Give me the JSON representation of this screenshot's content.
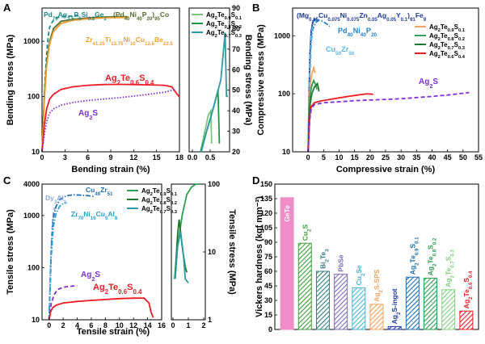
{
  "chart_data": [
    {
      "panel": "A",
      "type": "line",
      "xlabel": "Bending strain (%)",
      "ylabel": "Bending stress (MPa)",
      "yscale": "log",
      "xlim": [
        0,
        18
      ],
      "ylim": [
        10,
        4000
      ],
      "xticks": [
        "0",
        "3",
        "6",
        "9",
        "12",
        "15",
        "18"
      ],
      "yticks": [
        "10",
        "100",
        "1000"
      ],
      "annotations": [
        "Pd79Ag3.5P6Si9.5Ge2",
        "(Pd40Ni40P20)95Co",
        "Zr41.25Ti13.75Ni10Cu12.5Be22.5",
        "Ag2Te0.6S0.4",
        "Ag2S"
      ],
      "series": [
        {
          "name": "Pd79Ag3.5P6Si9.5Ge2",
          "color": "#1a8a8a",
          "dash": "dash",
          "x": [
            0,
            0.2,
            0.4,
            0.6,
            0.8,
            1.0,
            1.3,
            1.6,
            2.0,
            3.0,
            5.0
          ],
          "y": [
            10,
            50,
            200,
            600,
            1200,
            1800,
            2200,
            2500,
            2700,
            2850,
            2900
          ]
        },
        {
          "name": "(Pd40Ni40P20)95Co",
          "color": "#556b2f",
          "dash": "solid",
          "x": [
            0,
            0.3,
            0.6,
            1.0,
            1.5,
            2.5,
            4,
            6,
            8,
            10,
            11.2
          ],
          "y": [
            10,
            100,
            400,
            1000,
            1700,
            2300,
            2500,
            2650,
            2750,
            2800,
            2800
          ]
        },
        {
          "name": "Zr41.25Ti13.75Ni10Cu12.5Be22.5",
          "color": "#f0a030",
          "dash": "solid",
          "x": [
            0,
            0.3,
            0.6,
            1.0,
            1.5,
            2.5,
            4,
            6,
            8,
            10,
            11.3
          ],
          "y": [
            10,
            80,
            350,
            900,
            1500,
            2100,
            2400,
            2550,
            2650,
            2700,
            2700
          ]
        },
        {
          "name": "Ag2Te0.6S0.4",
          "color": "#ee1c24",
          "dash": "solid",
          "x": [
            0,
            0.3,
            0.6,
            1.0,
            1.5,
            2.5,
            4,
            6,
            8,
            10,
            12,
            14,
            16,
            17,
            17.6,
            18
          ],
          "y": [
            10,
            30,
            60,
            90,
            110,
            135,
            150,
            160,
            165,
            166,
            165,
            163,
            160,
            150,
            115,
            98
          ]
        },
        {
          "name": "Ag2S",
          "color": "#7b2fd6",
          "dash": "dot",
          "x": [
            0,
            0.3,
            0.6,
            1.0,
            1.5,
            2.5,
            4,
            6,
            8,
            10,
            12,
            14,
            16,
            17,
            17.5
          ],
          "y": [
            10,
            20,
            35,
            50,
            60,
            70,
            78,
            85,
            90,
            95,
            102,
            110,
            120,
            130,
            135
          ]
        }
      ]
    },
    {
      "panel": "A-inset",
      "type": "line",
      "ylabel": "Bending stress (MPa)",
      "ylim": [
        20,
        90
      ],
      "yticks": [
        "20",
        "30",
        "40",
        "50",
        "60",
        "70",
        "80",
        "90"
      ],
      "xlim": [
        0,
        1.0
      ],
      "xticks": [
        "0.0",
        "0.5"
      ],
      "series": [
        {
          "name": "Ag2Te0.9S0.1",
          "color": "#7bc87b",
          "x": [
            0.23,
            0.35,
            0.45,
            0.52,
            0.54
          ],
          "y": [
            20,
            30,
            38,
            40,
            24
          ]
        },
        {
          "name": "Ag2Te0.8S0.2",
          "color": "#1e9a3c",
          "x": [
            0.23,
            0.4,
            0.6,
            0.72,
            0.76
          ],
          "y": [
            20,
            30,
            42,
            50,
            24
          ]
        },
        {
          "name": "Ag2Te0.7S0.3",
          "color": "#2e9aa6",
          "x": [
            0.25,
            0.4,
            0.6,
            0.8,
            0.92,
            0.96,
            1.0
          ],
          "y": [
            20,
            30,
            42,
            55,
            78,
            47,
            47
          ]
        }
      ]
    },
    {
      "panel": "B",
      "type": "line",
      "xlabel": "Compressive strain (%)",
      "ylabel": "Compressive stress (MPa)",
      "yscale": "log",
      "xlim": [
        -5,
        55
      ],
      "ylim": [
        10,
        3000
      ],
      "xticks": [
        "0",
        "5",
        "10",
        "15",
        "20",
        "25",
        "30",
        "35",
        "40",
        "45",
        "50",
        "55"
      ],
      "yticks": [
        "10",
        "100",
        "1000"
      ],
      "annotations": [
        "(Mg0.65Cu0.075Ni0.075Zn0.05Ag0.05Y0.1)91Fe9",
        "Pd40Ni40P20",
        "Cu50Zr50",
        "Ag2S"
      ],
      "series": [
        {
          "name": "(Mg0.65Cu0.075Ni0.075Zn0.05Ag0.05Y0.1)91Fe9",
          "color": "#1f3b9a",
          "x": [
            0,
            0.3,
            0.6,
            1.0,
            1.5,
            2.0,
            2.5
          ],
          "y": [
            10,
            100,
            500,
            1200,
            1700,
            1900,
            1950
          ]
        },
        {
          "name": "Pd40Ni40P20",
          "color": "#1f7fd0",
          "dash": "dashdot",
          "x": [
            0,
            0.5,
            1.0,
            1.5,
            2.5,
            3.5,
            5,
            7
          ],
          "y": [
            10,
            200,
            800,
            1300,
            1700,
            1850,
            1750,
            1450
          ]
        },
        {
          "name": "Cu50Zr50",
          "color": "#59b6e6",
          "dash": "dashdot",
          "x": [
            0,
            0.5,
            1.0,
            1.5,
            2.0,
            3.0
          ],
          "y": [
            10,
            300,
            1000,
            1500,
            1800,
            1900
          ]
        },
        {
          "name": "Ag2Te0.9S0.1",
          "color": "#f4a460",
          "x": [
            0,
            0.3,
            0.7,
            1.2,
            1.8,
            2.2
          ],
          "y": [
            10,
            60,
            150,
            220,
            280,
            230
          ]
        },
        {
          "name": "Ag2Te0.8S0.2",
          "color": "#2e9e4f",
          "x": [
            0,
            0.3,
            0.7,
            1.2,
            1.8,
            2.5,
            2.8
          ],
          "y": [
            10,
            50,
            100,
            140,
            170,
            140,
            120
          ]
        },
        {
          "name": "Ag2Te0.7S0.3",
          "color": "#1a7a2e",
          "x": [
            0,
            0.3,
            0.7,
            1.2,
            2.0,
            3.0,
            3.5
          ],
          "y": [
            10,
            40,
            70,
            100,
            130,
            150,
            110
          ]
        },
        {
          "name": "Ag2Te0.6S0.4",
          "color": "#ee1c24",
          "x": [
            0,
            0.5,
            1.0,
            2.0,
            4,
            7,
            10,
            13,
            16,
            19,
            21
          ],
          "y": [
            10,
            40,
            60,
            70,
            75,
            80,
            85,
            90,
            95,
            100,
            98
          ]
        },
        {
          "name": "Ag2S",
          "color": "#7b2fd6",
          "dash": "dash",
          "x": [
            0,
            0.5,
            1.0,
            2,
            5,
            10,
            15,
            20,
            25,
            30,
            35,
            40,
            45,
            50,
            52
          ],
          "y": [
            10,
            35,
            55,
            65,
            70,
            73,
            76,
            78,
            80,
            82,
            86,
            90,
            95,
            102,
            105
          ]
        }
      ]
    },
    {
      "panel": "C",
      "type": "line",
      "xlabel": "Tensile strain (%)",
      "ylabel": "Tensile stress (MPa)",
      "yscale": "log",
      "xlim": [
        -1,
        16
      ],
      "ylim": [
        10,
        4000
      ],
      "xticks": [
        "0",
        "2",
        "4",
        "6",
        "8",
        "10",
        "12",
        "14",
        "16"
      ],
      "yticks": [
        "10",
        "100",
        "1000",
        "4000"
      ],
      "annotations": [
        "Dy3Al2",
        "Cu49Zr51",
        "Zr70Ni16Cu6Al8",
        "Ag2S",
        "Ag2Te0.6S0.4"
      ],
      "series": [
        {
          "name": "Dy3Al2",
          "color": "#8fa8dc",
          "dash": "dash",
          "x": [
            0,
            0.2,
            0.4,
            0.6,
            0.8
          ],
          "y": [
            10,
            100,
            500,
            1100,
            1400
          ]
        },
        {
          "name": "Cu49Zr51",
          "color": "#1f6fb5",
          "dash": "dashdot",
          "x": [
            0,
            0.3,
            0.6,
            1.0,
            1.5,
            2.5,
            3.5,
            4.5,
            5.5,
            6.5
          ],
          "y": [
            10,
            200,
            900,
            1500,
            2000,
            2400,
            2500,
            2450,
            2400,
            2300
          ]
        },
        {
          "name": "Zr70Ni16Cu6Al8",
          "color": "#2b9fd6",
          "dash": "dashdot",
          "x": [
            0,
            0.3,
            0.6,
            1.0,
            1.5,
            2.0,
            2.5
          ],
          "y": [
            10,
            150,
            600,
            1100,
            1500,
            1700,
            1750
          ]
        },
        {
          "name": "Ag2S",
          "color": "#7b2fd6",
          "dash": "dash",
          "x": [
            0,
            0.3,
            0.7,
            1.2,
            2.0,
            3.0,
            4.0
          ],
          "y": [
            10,
            20,
            30,
            38,
            42,
            44,
            45
          ]
        },
        {
          "name": "Ag2Te0.6S0.4",
          "color": "#ee1c24",
          "x": [
            0,
            0.2,
            0.5,
            1.0,
            2,
            4,
            6,
            8,
            10,
            12,
            13.5,
            14.2,
            14.5,
            14.8
          ],
          "y": [
            10,
            14,
            17,
            19,
            21,
            22.5,
            23.5,
            24.5,
            25.5,
            26,
            26,
            21,
            14,
            11
          ]
        }
      ]
    },
    {
      "panel": "C-inset",
      "type": "line",
      "ylabel": "Tensile stress (MPa)",
      "yscale": "log",
      "ylim": [
        1,
        100
      ],
      "yticks": [
        "1",
        "10",
        "100"
      ],
      "xlim": [
        0,
        2
      ],
      "xticks": [
        "0",
        "1",
        "2"
      ],
      "series": [
        {
          "name": "Ag2Te0.9S0.1",
          "color": "#2e9e4f",
          "x": [
            0.1,
            0.3,
            0.6,
            0.9,
            1.2,
            1.5,
            1.7
          ],
          "y": [
            4,
            12,
            35,
            70,
            90,
            100,
            100
          ]
        },
        {
          "name": "Ag2Te0.8S0.2",
          "color": "#1a7a2e",
          "x": [
            0.15,
            0.3,
            0.4,
            0.6,
            0.8,
            0.9
          ],
          "y": [
            5,
            18,
            30,
            12,
            6,
            5
          ]
        },
        {
          "name": "Ag2Te0.7S0.3",
          "color": "#2e9aa6",
          "x": [
            0.15,
            0.3,
            0.5,
            0.7,
            0.8,
            1.0
          ],
          "y": [
            4,
            12,
            20,
            8,
            4,
            3.5
          ]
        }
      ]
    },
    {
      "panel": "D",
      "type": "bar",
      "ylabel": "Vickers hardness (kgf mm⁻²)",
      "ylim": [
        0,
        150
      ],
      "yticks": [
        "0",
        "15",
        "30",
        "45",
        "60",
        "75",
        "90",
        "105",
        "120",
        "135",
        "150"
      ],
      "categories": [
        "GeTe",
        "Cu2S",
        "Bi2Te3",
        "PbSe",
        "Cu2Se",
        "Ag2S-SPS",
        "Ag2S-ingot",
        "Ag2Te0.9S0.1",
        "Ag2Te0.8S0.2",
        "Ag2Te0.7S0.3",
        "Ag2Te0.6S0.4"
      ],
      "values": [
        136,
        89,
        60,
        57,
        43,
        26,
        3,
        54,
        53,
        41,
        19
      ],
      "colors": [
        "#f08cc8",
        "#3a9e3a",
        "#2f7f7f",
        "#7a6bc4",
        "#47b6d6",
        "#f4a460",
        "#1f3b9a",
        "#1f6fb5",
        "#2e9e4f",
        "#7fd07f",
        "#ee1c24"
      ]
    }
  ],
  "panel_labels": [
    "A",
    "B",
    "C",
    "D"
  ],
  "legends": {
    "A_inset": [
      "Ag2Te0.9S0.1",
      "Ag2Te0.8S0.2",
      "Ag2Te0.7S0.3"
    ],
    "B": [
      "Ag2Te0.9S0.1",
      "Ag2Te0.8S0.2",
      "Ag2Te0.7S0.3",
      "Ag2Te0.6S0.4"
    ],
    "C": [
      "Ag2Te0.9S0.1",
      "Ag2Te0.8S0.2",
      "Ag2Te0.7S0.3"
    ]
  }
}
